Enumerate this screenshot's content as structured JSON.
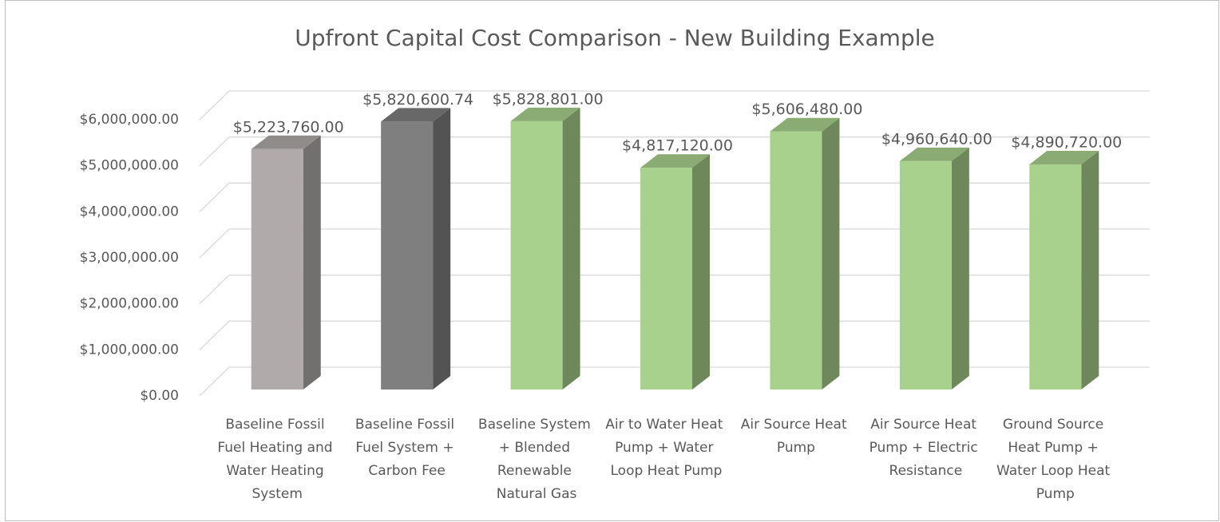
{
  "chart_data": {
    "type": "bar3d",
    "title": "Upfront Capital Cost Comparison - New Building Example",
    "categories": [
      "Baseline Fossil Fuel Heating and Water Heating System",
      "Baseline Fossil Fuel System + Carbon Fee",
      "Baseline System + Blended Renewable Natural Gas",
      "Air to Water Heat Pump + Water Loop Heat Pump",
      "Air Source Heat Pump",
      "Air Source Heat Pump + Electric Resistance",
      "Ground Source Heat Pump + Water Loop Heat Pump"
    ],
    "values": [
      5223760.0,
      5820600.74,
      5828801.0,
      4817120.0,
      5606480.0,
      4960640.0,
      4890720.0
    ],
    "value_labels": [
      "$5,223,760.00",
      "$5,820,600.74",
      "$5,828,801.00",
      "$4,817,120.00",
      "$5,606,480.00",
      "$4,960,640.00",
      "$4,890,720.00"
    ],
    "colors": [
      "#b0abaa",
      "#7f7f7f",
      "#a9d18e",
      "#a9d18e",
      "#a9d18e",
      "#a9d18e",
      "#a9d18e"
    ],
    "ylim": [
      0,
      6000000
    ],
    "yticks": [
      {
        "value": 0,
        "label": "$0.00"
      },
      {
        "value": 1000000,
        "label": "$1,000,000.00"
      },
      {
        "value": 2000000,
        "label": "$2,000,000.00"
      },
      {
        "value": 3000000,
        "label": "$3,000,000.00"
      },
      {
        "value": 4000000,
        "label": "$4,000,000.00"
      },
      {
        "value": 5000000,
        "label": "$5,000,000.00"
      },
      {
        "value": 6000000,
        "label": "$6,000,000.00"
      }
    ],
    "grid": true
  }
}
